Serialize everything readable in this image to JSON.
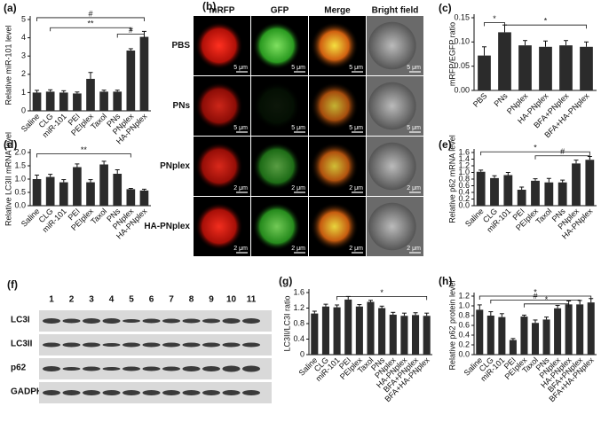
{
  "chart_data": [
    {
      "type": "bar",
      "panel": "(a)",
      "ylabel": "Relative miR-101 level",
      "categories": [
        "Saline",
        "CLG",
        "miR-101",
        "PEI",
        "PEIplex",
        "Taxol",
        "PNs",
        "PNplex",
        "HA-PNplex"
      ],
      "values": [
        1.0,
        1.05,
        1.0,
        0.95,
        1.75,
        1.05,
        1.05,
        3.3,
        4.05
      ],
      "errors": [
        0.12,
        0.1,
        0.1,
        0.08,
        0.35,
        0.08,
        0.08,
        0.1,
        0.3
      ],
      "ylim": [
        0,
        5
      ],
      "yticks": [
        0,
        1,
        2,
        3,
        4,
        5
      ],
      "color": "#2b2b2b",
      "annotations": [
        "#",
        "**",
        "#"
      ]
    },
    {
      "type": "bar",
      "panel": "(c)",
      "ylabel": "mRFP/EGFP ratio",
      "categories": [
        "PBS",
        "PNs",
        "PNplex",
        "HA-PNplex",
        "BFA+PNplex",
        "BFA+HA-PNplex"
      ],
      "values": [
        0.072,
        0.12,
        0.093,
        0.09,
        0.093,
        0.09
      ],
      "errors": [
        0.018,
        0.015,
        0.01,
        0.012,
        0.01,
        0.01
      ],
      "ylim": [
        0,
        0.15
      ],
      "yticks": [
        {
          "value": 0,
          "label": "0.00"
        },
        {
          "value": 0.05,
          "label": "0.05"
        },
        {
          "value": 0.1,
          "label": "0.10"
        },
        {
          "value": 0.15,
          "label": "0.15"
        }
      ],
      "color": "#2b2b2b",
      "annotations": [
        "*",
        "*"
      ]
    },
    {
      "type": "bar",
      "panel": "(d)",
      "ylabel": "Relative LC3II mRNA level",
      "categories": [
        "Saline",
        "CLG",
        "miR-101",
        "PEI",
        "PEIplex",
        "Taxol",
        "PNs",
        "PNplex",
        "HA-PNplex"
      ],
      "values": [
        1.0,
        1.08,
        0.88,
        1.45,
        0.88,
        1.55,
        1.2,
        0.62,
        0.57
      ],
      "errors": [
        0.15,
        0.1,
        0.1,
        0.12,
        0.1,
        0.12,
        0.15,
        0.03,
        0.05
      ],
      "ylim": [
        0,
        2
      ],
      "yticks": [
        {
          "value": 0,
          "label": "0.0"
        },
        {
          "value": 0.5,
          "label": "0.5"
        },
        {
          "value": 1,
          "label": "1.0"
        },
        {
          "value": 1.5,
          "label": "1.5"
        },
        {
          "value": 2,
          "label": "2.0"
        }
      ],
      "color": "#2b2b2b",
      "annotations": [
        "**"
      ]
    },
    {
      "type": "bar",
      "panel": "(e)",
      "ylabel": "Relative p62 mRNA level",
      "categories": [
        "Saline",
        "CLG",
        "miR-101",
        "PEI",
        "PEIplex",
        "Taxol",
        "PNs",
        "PNplex",
        "HA-PNplex"
      ],
      "values": [
        1.02,
        0.83,
        0.92,
        0.48,
        0.75,
        0.7,
        0.7,
        1.27,
        1.38
      ],
      "errors": [
        0.05,
        0.07,
        0.08,
        0.08,
        0.06,
        0.12,
        0.07,
        0.1,
        0.1
      ],
      "ylim": [
        0,
        1.6
      ],
      "yticks": [
        {
          "value": 0,
          "label": "0.0"
        },
        {
          "value": 0.2,
          "label": "0.2"
        },
        {
          "value": 0.4,
          "label": "0.4"
        },
        {
          "value": 0.6,
          "label": "0.6"
        },
        {
          "value": 0.8,
          "label": "0.8"
        },
        {
          "value": 1.0,
          "label": "1.0"
        },
        {
          "value": 1.2,
          "label": "1.2"
        },
        {
          "value": 1.4,
          "label": "1.4"
        },
        {
          "value": 1.6,
          "label": "1.6"
        }
      ],
      "color": "#2b2b2b",
      "annotations": [
        "*",
        "#"
      ]
    },
    {
      "type": "bar",
      "panel": "(g)",
      "ylabel": "LC3II/LC3I ratio",
      "categories": [
        "Saline",
        "CLG",
        "miR-101",
        "PEI",
        "PEIplex",
        "Taxol",
        "PNs",
        "PNplex",
        "HA-PNplex",
        "BFA+PNplex",
        "BFA+HA-PNplex"
      ],
      "values": [
        1.06,
        1.24,
        1.22,
        1.42,
        1.24,
        1.36,
        1.2,
        1.03,
        1.0,
        1.02,
        1.0
      ],
      "errors": [
        0.06,
        0.06,
        0.06,
        0.08,
        0.05,
        0.04,
        0.05,
        0.06,
        0.07,
        0.06,
        0.07
      ],
      "ylim": [
        0,
        1.6
      ],
      "yticks": [
        0,
        0.4,
        0.8,
        1.2,
        1.6
      ],
      "color": "#2b2b2b",
      "annotations": [
        "*"
      ]
    },
    {
      "type": "bar",
      "panel": "(h)",
      "ylabel": "Relative p62 protein level",
      "categories": [
        "Saline",
        "CLG",
        "miR-101",
        "PEI",
        "PEIplex",
        "Taxol",
        "PNs",
        "PNplex",
        "HA-PNplex",
        "BFA+PNplex",
        "BFA+HA-PNplex"
      ],
      "values": [
        0.92,
        0.8,
        0.77,
        0.3,
        0.78,
        0.65,
        0.72,
        0.95,
        1.03,
        1.03,
        1.07
      ],
      "errors": [
        0.1,
        0.08,
        0.07,
        0.03,
        0.03,
        0.06,
        0.05,
        0.06,
        0.07,
        0.08,
        0.08
      ],
      "ylim": [
        0,
        1.2
      ],
      "yticks": [
        {
          "value": 0,
          "label": "0.0"
        },
        {
          "value": 0.2,
          "label": "0.2"
        },
        {
          "value": 0.4,
          "label": "0.4"
        },
        {
          "value": 0.6,
          "label": "0.6"
        },
        {
          "value": 0.8,
          "label": "0.8"
        },
        {
          "value": 1.0,
          "label": "1.0"
        },
        {
          "value": 1.2,
          "label": "1.2"
        }
      ],
      "color": "#2b2b2b",
      "annotations": [
        "*",
        "#",
        "*"
      ]
    }
  ],
  "image_grid": {
    "label": "(b)",
    "columns": [
      "mRFP",
      "GFP",
      "Merge",
      "Bright field"
    ],
    "rows": [
      {
        "name": "PBS",
        "scale": "5 μm"
      },
      {
        "name": "PNs",
        "scale": "5 μm"
      },
      {
        "name": "PNplex",
        "scale": "2 μm"
      },
      {
        "name": "HA-PNplex",
        "scale": "2 μm"
      }
    ]
  },
  "western_blot": {
    "label": "(f)",
    "lanes": [
      "1",
      "2",
      "3",
      "4",
      "5",
      "6",
      "7",
      "8",
      "9",
      "10",
      "11"
    ],
    "rows": [
      "LC3I",
      "LC3II",
      "p62",
      "GADPH"
    ]
  }
}
